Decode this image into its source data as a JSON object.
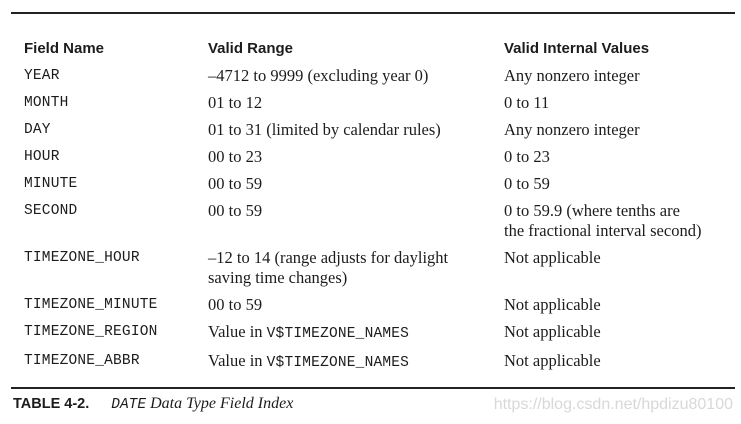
{
  "table": {
    "headers": [
      "Field Name",
      "Valid Range",
      "Valid Internal Values"
    ],
    "rows": [
      {
        "field": "YEAR",
        "range": "–4712 to 9999 (excluding year 0)",
        "internal": "Any nonzero integer"
      },
      {
        "field": "MONTH",
        "range": "01 to 12",
        "internal": "0 to 11"
      },
      {
        "field": "DAY",
        "range": "01 to 31 (limited by calendar rules)",
        "internal": "Any nonzero integer"
      },
      {
        "field": "HOUR",
        "range": "00 to 23",
        "internal": "0 to 23"
      },
      {
        "field": "MINUTE",
        "range": "00 to 59",
        "internal": "0 to 59"
      },
      {
        "field": "SECOND",
        "range": "00 to 59",
        "internal_line1": "0 to 59.9 (where tenths are",
        "internal_line2": "the fractional interval second)"
      },
      {
        "field": "TIMEZONE_HOUR",
        "range_line1": "–12 to 14 (range adjusts for daylight",
        "range_line2": "saving time changes)",
        "internal": "Not applicable"
      },
      {
        "field": "TIMEZONE_MINUTE",
        "range": "00 to 59",
        "internal": "Not applicable"
      },
      {
        "field": "TIMEZONE_REGION",
        "range_prefix": "Value in",
        "range_code": "V$TIMEZONE_NAMES",
        "internal": "Not applicable"
      },
      {
        "field": "TIMEZONE_ABBR",
        "range_prefix": "Value in",
        "range_code": "V$TIMEZONE_NAMES",
        "internal": "Not applicable"
      }
    ]
  },
  "caption": {
    "label": "TABLE 4-2.",
    "code": "DATE",
    "text": "Data Type Field Index"
  },
  "watermark": "https://blog.csdn.net/hpdizu80100"
}
